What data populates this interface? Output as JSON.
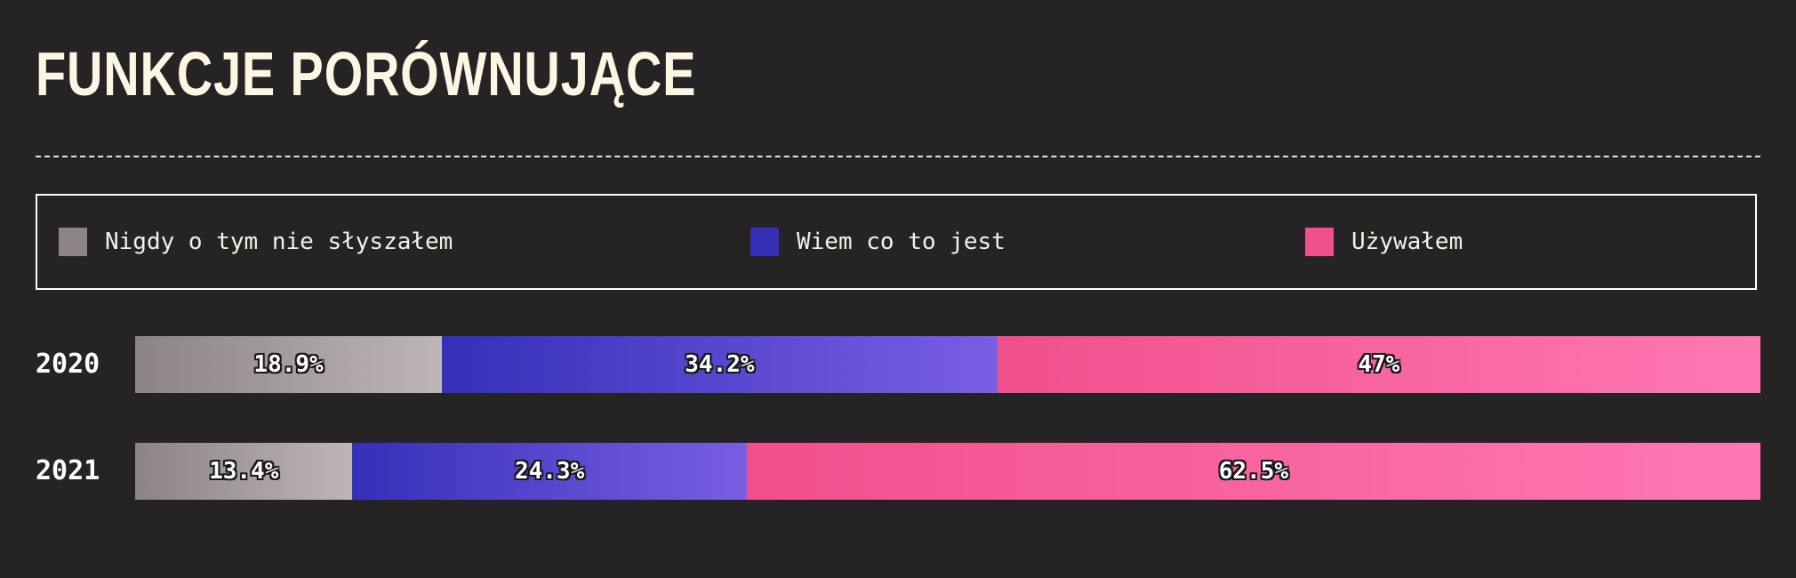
{
  "title": "FUNKCJE PORÓWNUJĄCE",
  "chart_data": {
    "type": "bar",
    "orientation": "horizontal",
    "stacked": true,
    "categories": [
      "2020",
      "2021"
    ],
    "series": [
      {
        "name": "Nigdy o tym nie słyszałem",
        "values": [
          18.9,
          13.4
        ],
        "labels": [
          "18.9%",
          "13.4%"
        ],
        "color": "#8c8388",
        "color_end": "#bdb5b6"
      },
      {
        "name": "Wiem co to jest",
        "values": [
          34.2,
          24.3
        ],
        "labels": [
          "34.2%",
          "24.3%"
        ],
        "color": "#3430b8",
        "color_end": "#7a5ee4"
      },
      {
        "name": "Używałem",
        "values": [
          47,
          62.5
        ],
        "labels": [
          "47%",
          "62.5%"
        ],
        "color": "#f0508c",
        "color_end": "#ff78b4"
      }
    ],
    "legend_position": "top",
    "xlim": [
      0,
      100
    ],
    "grid": false
  }
}
